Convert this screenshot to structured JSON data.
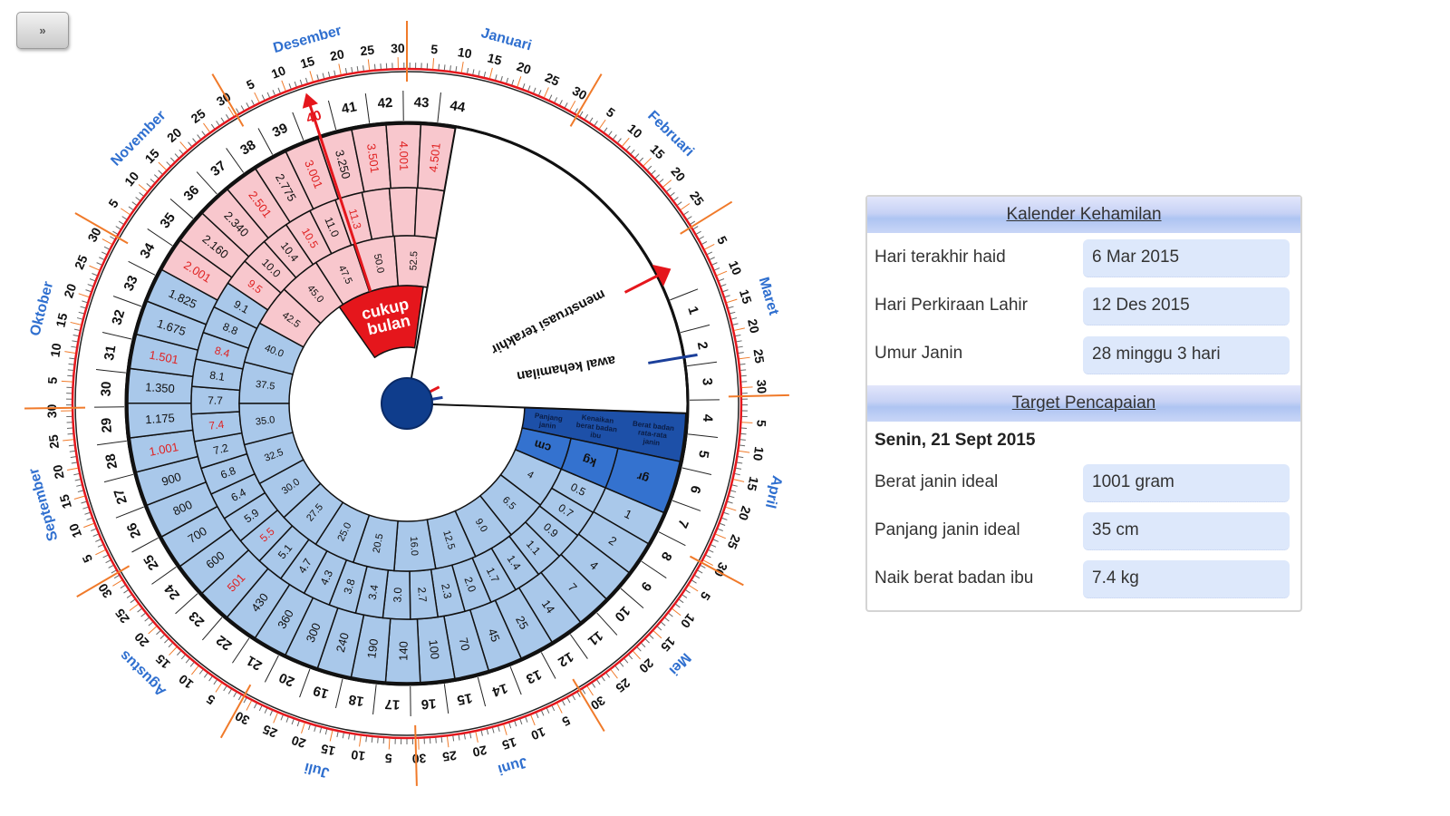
{
  "nav_button": {
    "label": "»"
  },
  "panel": {
    "header1": "Kalender Kehamilan",
    "rows1": [
      {
        "label": "Hari terakhir haid",
        "value": "6 Mar 2015"
      },
      {
        "label": "Hari Perkiraan Lahir",
        "value": "12 Des 2015"
      },
      {
        "label": "Umur Janin",
        "value": "28 minggu 3 hari"
      }
    ],
    "header2": "Target Pencapaian",
    "target_date": "Senin, 21 Sept 2015",
    "rows2": [
      {
        "label": "Berat janin ideal",
        "value": "1001 gram"
      },
      {
        "label": "Panjang janin ideal",
        "value": "35 cm"
      },
      {
        "label": "Naik berat badan ibu",
        "value": "7.4 kg"
      }
    ]
  },
  "wheel": {
    "months": [
      "Januari",
      "Februari",
      "Maret",
      "April",
      "Mei",
      "Juni",
      "Juli",
      "Agustus",
      "September",
      "Oktober",
      "November",
      "Desember"
    ],
    "month_days": [
      31,
      28,
      31,
      30,
      31,
      30,
      31,
      31,
      30,
      31,
      30,
      31
    ],
    "week_count": 44,
    "highlight_week": 40,
    "pointer_lmp": "menstruasi terakhir",
    "pointer_conception": "awal kehamilan",
    "full_term": "cukup bulan",
    "header_labels": {
      "weight": "Berat badan rata-rata janin",
      "gain": "Kenaikan berat badan ibu",
      "length": "Panjang janin"
    },
    "units": {
      "weight": "gr",
      "gain": "kg",
      "length": "cm"
    },
    "weight_g": [
      "1",
      "2",
      "4",
      "7",
      "14",
      "25",
      "45",
      "70",
      "100",
      "140",
      "190",
      "240",
      "300",
      "360",
      "430",
      "501",
      "600",
      "700",
      "800",
      "900",
      "1.001",
      "1.175",
      "1.350",
      "1.501",
      "1.675",
      "1.825",
      "2.001",
      "2.160",
      "2.340",
      "2.501",
      "2.775",
      "3.001",
      "3.250",
      "3.501",
      "4.001",
      "4.501"
    ],
    "weight_red": [
      15,
      20,
      23,
      26,
      29,
      31,
      33,
      34,
      35
    ],
    "gain_kg": [
      "0.5",
      "0.7",
      "0.9",
      "1.1",
      "1.4",
      "1.7",
      "2.0",
      "2.3",
      "2.7",
      "3.0",
      "3.4",
      "3.8",
      "4.3",
      "4.7",
      "5.1",
      "5.5",
      "5.9",
      "6.4",
      "6.8",
      "7.2",
      "7.4",
      "7.7",
      "8.1",
      "8.4",
      "8.8",
      "9.1",
      "9.5",
      "10.0",
      "10.4",
      "10.5",
      "11.0",
      "11.3",
      "",
      "",
      ""
    ],
    "gain_red": [
      15,
      20,
      23,
      26,
      29,
      31
    ],
    "length_cm": [
      "4",
      "6.5",
      "9.0",
      "12.5",
      "16.0",
      "20.5",
      "25.0",
      "27.5",
      "30.0",
      "32.5",
      "35.0",
      "37.5",
      "40.0",
      "42.5",
      "45.0",
      "47.5",
      "50.0",
      "52.5"
    ],
    "pink_from": {
      "weight": 26,
      "gain": 26,
      "length": 13
    },
    "colors": {
      "light_blue": "#a9c8ea",
      "pink": "#f8c7cd",
      "red": "#e5161c",
      "dark_blue": "#1d50a8",
      "mid_blue": "#3472cf",
      "month_blue": "#2f6fcf",
      "orange": "#f07a2a"
    }
  }
}
